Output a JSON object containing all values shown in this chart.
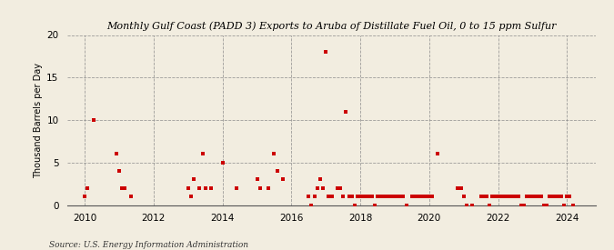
{
  "title": "Monthly Gulf Coast (PADD 3) Exports to Aruba of Distillate Fuel Oil, 0 to 15 ppm Sulfur",
  "ylabel": "Thousand Barrels per Day",
  "source": "Source: U.S. Energy Information Administration",
  "background_color": "#f2ede0",
  "marker_color": "#cc0000",
  "ylim": [
    0,
    20
  ],
  "yticks": [
    0,
    5,
    10,
    15,
    20
  ],
  "xlim": [
    2009.5,
    2024.83
  ],
  "xtick_years": [
    2010,
    2012,
    2014,
    2016,
    2018,
    2020,
    2022,
    2024
  ],
  "data": [
    [
      2010.0,
      1.0
    ],
    [
      2010.083,
      2.0
    ],
    [
      2010.25,
      10.0
    ],
    [
      2010.917,
      6.0
    ],
    [
      2011.0,
      4.0
    ],
    [
      2011.083,
      2.0
    ],
    [
      2011.167,
      2.0
    ],
    [
      2011.333,
      1.0
    ],
    [
      2013.0,
      2.0
    ],
    [
      2013.083,
      1.0
    ],
    [
      2013.167,
      3.0
    ],
    [
      2013.333,
      2.0
    ],
    [
      2013.417,
      6.0
    ],
    [
      2013.5,
      2.0
    ],
    [
      2013.667,
      2.0
    ],
    [
      2014.0,
      5.0
    ],
    [
      2014.417,
      2.0
    ],
    [
      2015.0,
      3.0
    ],
    [
      2015.083,
      2.0
    ],
    [
      2015.333,
      2.0
    ],
    [
      2015.5,
      6.0
    ],
    [
      2015.583,
      4.0
    ],
    [
      2015.75,
      3.0
    ],
    [
      2016.5,
      1.0
    ],
    [
      2016.583,
      0.0
    ],
    [
      2016.667,
      1.0
    ],
    [
      2016.75,
      2.0
    ],
    [
      2016.833,
      3.0
    ],
    [
      2016.917,
      2.0
    ],
    [
      2017.0,
      18.0
    ],
    [
      2017.083,
      1.0
    ],
    [
      2017.167,
      1.0
    ],
    [
      2017.333,
      2.0
    ],
    [
      2017.417,
      2.0
    ],
    [
      2017.5,
      1.0
    ],
    [
      2017.583,
      11.0
    ],
    [
      2017.667,
      1.0
    ],
    [
      2017.75,
      1.0
    ],
    [
      2017.833,
      0.0
    ],
    [
      2017.917,
      1.0
    ],
    [
      2018.0,
      1.0
    ],
    [
      2018.083,
      1.0
    ],
    [
      2018.167,
      1.0
    ],
    [
      2018.25,
      1.0
    ],
    [
      2018.333,
      1.0
    ],
    [
      2018.417,
      0.0
    ],
    [
      2018.5,
      1.0
    ],
    [
      2018.583,
      1.0
    ],
    [
      2018.667,
      1.0
    ],
    [
      2018.75,
      1.0
    ],
    [
      2018.833,
      1.0
    ],
    [
      2018.917,
      1.0
    ],
    [
      2019.0,
      1.0
    ],
    [
      2019.083,
      1.0
    ],
    [
      2019.167,
      1.0
    ],
    [
      2019.25,
      1.0
    ],
    [
      2019.333,
      0.0
    ],
    [
      2019.5,
      1.0
    ],
    [
      2019.583,
      1.0
    ],
    [
      2019.667,
      1.0
    ],
    [
      2019.75,
      1.0
    ],
    [
      2019.833,
      1.0
    ],
    [
      2019.917,
      1.0
    ],
    [
      2020.0,
      1.0
    ],
    [
      2020.083,
      1.0
    ],
    [
      2020.25,
      6.0
    ],
    [
      2020.833,
      2.0
    ],
    [
      2020.917,
      2.0
    ],
    [
      2021.0,
      1.0
    ],
    [
      2021.083,
      0.0
    ],
    [
      2021.25,
      0.0
    ],
    [
      2021.5,
      1.0
    ],
    [
      2021.583,
      1.0
    ],
    [
      2021.667,
      1.0
    ],
    [
      2021.75,
      0.0
    ],
    [
      2021.833,
      1.0
    ],
    [
      2021.917,
      1.0
    ],
    [
      2022.0,
      1.0
    ],
    [
      2022.083,
      1.0
    ],
    [
      2022.167,
      1.0
    ],
    [
      2022.25,
      1.0
    ],
    [
      2022.333,
      1.0
    ],
    [
      2022.417,
      1.0
    ],
    [
      2022.5,
      1.0
    ],
    [
      2022.583,
      1.0
    ],
    [
      2022.667,
      0.0
    ],
    [
      2022.75,
      0.0
    ],
    [
      2022.833,
      1.0
    ],
    [
      2022.917,
      1.0
    ],
    [
      2023.0,
      1.0
    ],
    [
      2023.083,
      1.0
    ],
    [
      2023.167,
      1.0
    ],
    [
      2023.25,
      1.0
    ],
    [
      2023.333,
      0.0
    ],
    [
      2023.417,
      0.0
    ],
    [
      2023.5,
      1.0
    ],
    [
      2023.583,
      1.0
    ],
    [
      2023.667,
      1.0
    ],
    [
      2023.75,
      1.0
    ],
    [
      2023.833,
      1.0
    ],
    [
      2023.917,
      0.0
    ],
    [
      2024.0,
      1.0
    ],
    [
      2024.083,
      1.0
    ],
    [
      2024.167,
      0.0
    ]
  ]
}
